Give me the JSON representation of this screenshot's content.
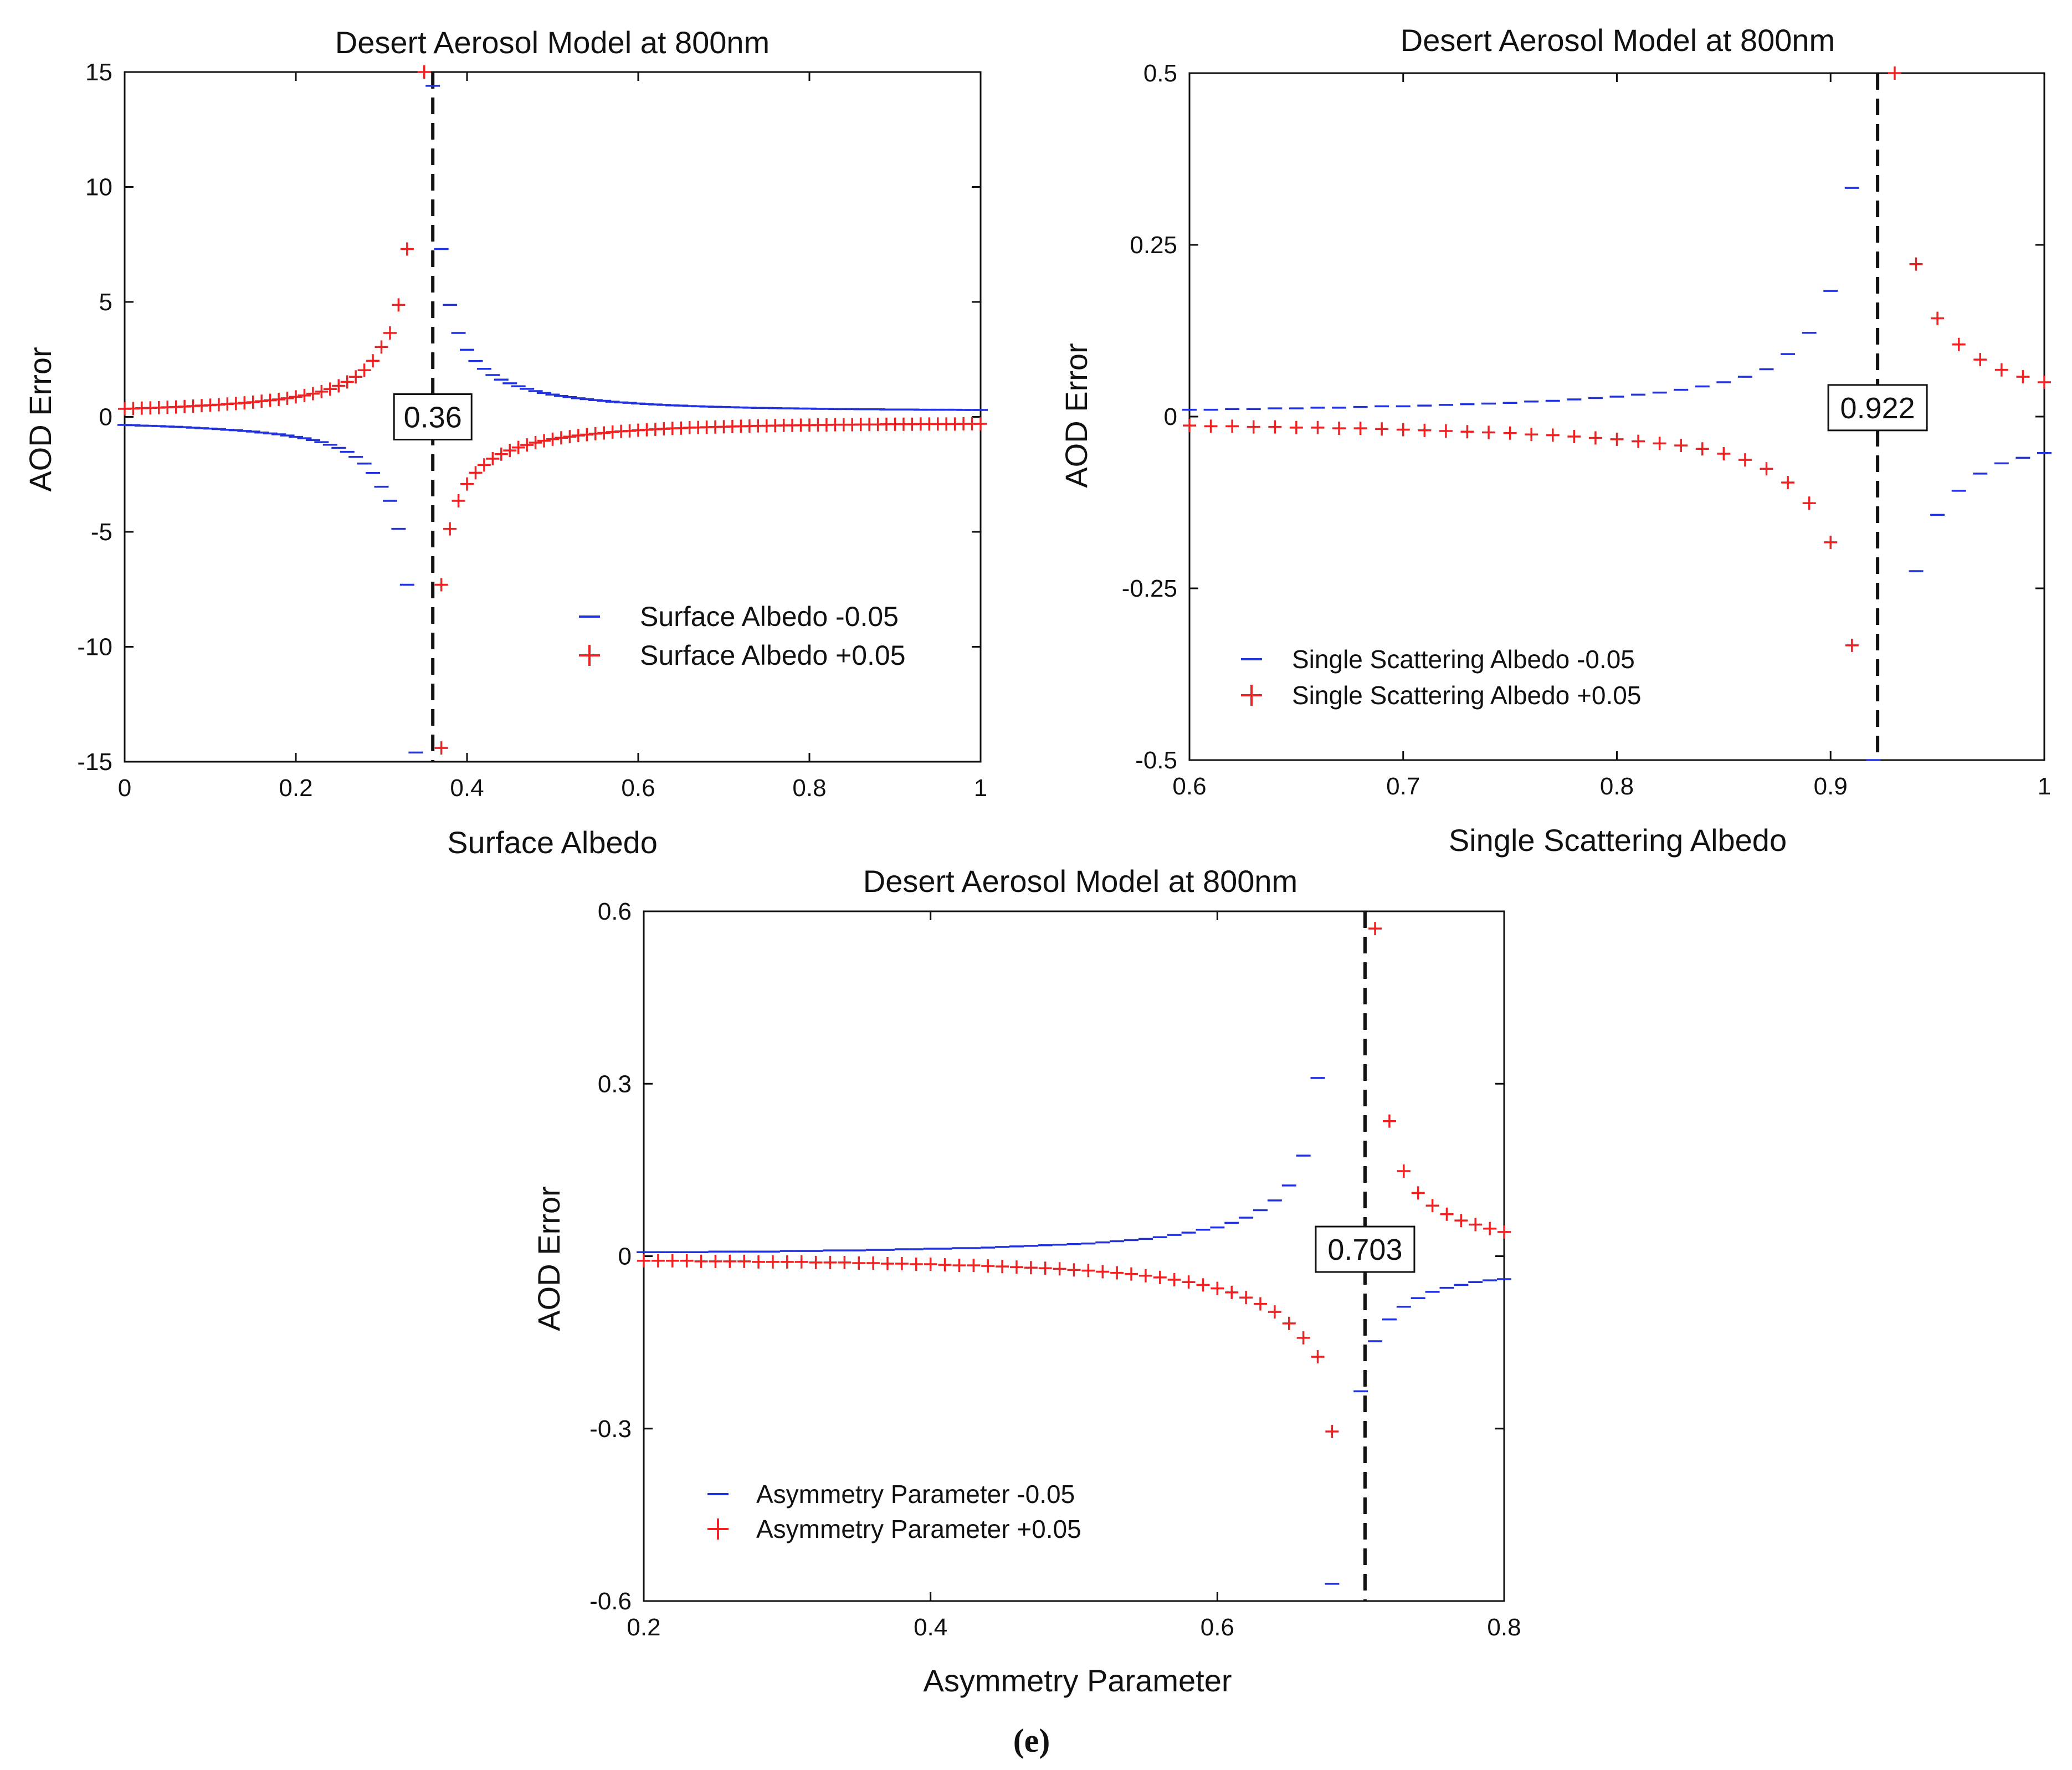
{
  "figure_label": "(e)",
  "colors": {
    "minus": "#2233dd",
    "plus": "#ee2222",
    "axis": "#111111",
    "guide": "#111111"
  },
  "chart_data": [
    {
      "type": "scatter",
      "title": "Desert Aerosol Model at 800nm",
      "xlabel": "Surface Albedo",
      "ylabel": "AOD Error",
      "xlim": [
        0,
        1
      ],
      "ylim": [
        -15,
        15
      ],
      "xticks": [
        0,
        0.2,
        0.4,
        0.6,
        0.8,
        1
      ],
      "xtick_labels": [
        "0",
        "0.2",
        "0.4",
        "0.6",
        "0.8",
        "1"
      ],
      "yticks": [
        15,
        10,
        5,
        0,
        -5,
        -10,
        -15
      ],
      "ytick_labels": [
        "15",
        "10",
        "5",
        "0",
        "-5",
        "-10",
        "-15"
      ],
      "critical_value": 0.36,
      "critical_label": "0.36",
      "critical_label_y": 0,
      "legend_position": "lower-right",
      "series": [
        {
          "name": "Surface Albedo -0.05",
          "marker": "dash",
          "color": "#2233dd",
          "x": [
            0,
            0.01,
            0.02,
            0.03,
            0.04,
            0.05,
            0.06,
            0.07,
            0.08,
            0.09,
            0.1,
            0.11,
            0.12,
            0.13,
            0.14,
            0.15,
            0.16,
            0.17,
            0.18,
            0.19,
            0.2,
            0.21,
            0.22,
            0.23,
            0.24,
            0.25,
            0.26,
            0.27,
            0.28,
            0.29,
            0.3,
            0.31,
            0.32,
            0.33,
            0.34,
            0.35,
            0.36,
            0.37,
            0.38,
            0.39,
            0.4,
            0.41,
            0.42,
            0.43,
            0.44,
            0.45,
            0.46,
            0.47,
            0.48,
            0.49,
            0.5,
            0.51,
            0.52,
            0.53,
            0.54,
            0.55,
            0.56,
            0.57,
            0.58,
            0.59,
            0.6,
            0.61,
            0.62,
            0.63,
            0.64,
            0.65,
            0.66,
            0.67,
            0.68,
            0.69,
            0.7,
            0.71,
            0.72,
            0.73,
            0.74,
            0.75,
            0.76,
            0.77,
            0.78,
            0.79,
            0.8,
            0.81,
            0.82,
            0.83,
            0.84,
            0.85,
            0.86,
            0.87,
            0.88,
            0.89,
            0.9,
            0.91,
            0.92,
            0.93,
            0.94,
            0.95,
            0.96,
            0.97,
            0.98,
            0.99,
            1.0
          ],
          "y": [
            -0.35,
            -0.36,
            -0.38,
            -0.39,
            -0.4,
            -0.42,
            -0.43,
            -0.45,
            -0.47,
            -0.49,
            -0.51,
            -0.53,
            -0.56,
            -0.58,
            -0.61,
            -0.64,
            -0.68,
            -0.72,
            -0.76,
            -0.81,
            -0.87,
            -0.93,
            -1.01,
            -1.1,
            -1.21,
            -1.35,
            -1.52,
            -1.74,
            -2.03,
            -2.44,
            -3.04,
            -3.65,
            -4.87,
            -7.3,
            -14.6,
            null,
            14.4,
            7.3,
            4.87,
            3.65,
            2.92,
            2.43,
            2.09,
            1.82,
            1.62,
            1.46,
            1.33,
            1.22,
            1.12,
            1.04,
            0.97,
            0.91,
            0.86,
            0.81,
            0.77,
            0.73,
            0.7,
            0.66,
            0.63,
            0.61,
            0.58,
            0.56,
            0.54,
            0.52,
            0.5,
            0.49,
            0.47,
            0.46,
            0.45,
            0.44,
            0.43,
            0.42,
            0.41,
            0.4,
            0.39,
            0.39,
            0.38,
            0.37,
            0.37,
            0.36,
            0.36,
            0.35,
            0.35,
            0.34,
            0.34,
            0.34,
            0.33,
            0.33,
            0.33,
            0.32,
            0.32,
            0.32,
            0.32,
            0.31,
            0.31,
            0.31,
            0.31,
            0.31,
            0.3,
            0.3,
            0.3
          ]
        },
        {
          "name": "Surface Albedo +0.05",
          "marker": "plus",
          "color": "#ee2222",
          "x": [
            0,
            0.01,
            0.02,
            0.03,
            0.04,
            0.05,
            0.06,
            0.07,
            0.08,
            0.09,
            0.1,
            0.11,
            0.12,
            0.13,
            0.14,
            0.15,
            0.16,
            0.17,
            0.18,
            0.19,
            0.2,
            0.21,
            0.22,
            0.23,
            0.24,
            0.25,
            0.26,
            0.27,
            0.28,
            0.29,
            0.3,
            0.31,
            0.32,
            0.33,
            0.34,
            0.35,
            0.36,
            0.37,
            0.38,
            0.39,
            0.4,
            0.41,
            0.42,
            0.43,
            0.44,
            0.45,
            0.46,
            0.47,
            0.48,
            0.49,
            0.5,
            0.51,
            0.52,
            0.53,
            0.54,
            0.55,
            0.56,
            0.57,
            0.58,
            0.59,
            0.6,
            0.61,
            0.62,
            0.63,
            0.64,
            0.65,
            0.66,
            0.67,
            0.68,
            0.69,
            0.7,
            0.71,
            0.72,
            0.73,
            0.74,
            0.75,
            0.76,
            0.77,
            0.78,
            0.79,
            0.8,
            0.81,
            0.82,
            0.83,
            0.84,
            0.85,
            0.86,
            0.87,
            0.88,
            0.89,
            0.9,
            0.91,
            0.92,
            0.93,
            0.94,
            0.95,
            0.96,
            0.97,
            0.98,
            0.99,
            1.0
          ],
          "y": [
            0.35,
            0.36,
            0.38,
            0.39,
            0.4,
            0.42,
            0.43,
            0.45,
            0.47,
            0.49,
            0.51,
            0.53,
            0.56,
            0.58,
            0.61,
            0.64,
            0.68,
            0.72,
            0.76,
            0.81,
            0.87,
            0.93,
            1.01,
            1.1,
            1.21,
            1.35,
            1.52,
            1.74,
            2.03,
            2.44,
            3.04,
            3.65,
            4.87,
            7.3,
            null,
            15.0,
            null,
            -7.3,
            -4.87,
            -3.65,
            -2.92,
            -2.43,
            -2.09,
            -1.82,
            -1.62,
            -1.46,
            -1.33,
            -1.22,
            -1.12,
            -1.04,
            -0.97,
            -0.91,
            -0.86,
            -0.81,
            -0.77,
            -0.73,
            -0.7,
            -0.66,
            -0.63,
            -0.61,
            -0.58,
            -0.56,
            -0.54,
            -0.52,
            -0.5,
            -0.49,
            -0.47,
            -0.46,
            -0.45,
            -0.44,
            -0.43,
            -0.42,
            -0.41,
            -0.4,
            -0.39,
            -0.39,
            -0.38,
            -0.37,
            -0.37,
            -0.36,
            -0.36,
            -0.35,
            -0.35,
            -0.34,
            -0.34,
            -0.34,
            -0.33,
            -0.33,
            -0.33,
            -0.32,
            -0.32,
            -0.32,
            -0.32,
            -0.31,
            -0.31,
            -0.31,
            -0.31,
            -0.31,
            -0.3,
            -0.3,
            -0.3
          ]
        }
      ],
      "extra_points": [
        {
          "series": 1,
          "x": 0.37,
          "y": -14.4
        }
      ]
    },
    {
      "type": "scatter",
      "title": "Desert Aerosol Model at 800nm",
      "xlabel": "Single Scattering Albedo",
      "ylabel": "AOD Error",
      "xlim": [
        0.6,
        1
      ],
      "ylim": [
        -0.5,
        0.5
      ],
      "xticks": [
        0.6,
        0.7,
        0.8,
        0.9,
        1
      ],
      "xtick_labels": [
        "0.6",
        "0.7",
        "0.8",
        "0.9",
        "1"
      ],
      "yticks": [
        0.5,
        0.25,
        0,
        -0.25,
        -0.5
      ],
      "ytick_labels": [
        "0.5",
        "0.25",
        "0",
        "-0.25",
        "-0.5"
      ],
      "critical_value": 0.922,
      "critical_label": "0.922",
      "critical_label_y": 0.013,
      "legend_position": "lower-left",
      "series": [
        {
          "name": "Single Scattering Albedo -0.05",
          "marker": "dash",
          "color": "#2233dd",
          "x": [
            0.6,
            0.61,
            0.62,
            0.63,
            0.64,
            0.65,
            0.66,
            0.67,
            0.68,
            0.69,
            0.7,
            0.71,
            0.72,
            0.73,
            0.74,
            0.75,
            0.76,
            0.77,
            0.78,
            0.79,
            0.8,
            0.81,
            0.82,
            0.83,
            0.84,
            0.85,
            0.86,
            0.87,
            0.88,
            0.89,
            0.9,
            0.91,
            0.92,
            0.93,
            0.94,
            0.95,
            0.96,
            0.97,
            0.98,
            0.99,
            1.0
          ],
          "y": [
            0.01,
            0.01,
            0.011,
            0.011,
            0.012,
            0.012,
            0.013,
            0.013,
            0.014,
            0.015,
            0.015,
            0.016,
            0.017,
            0.018,
            0.019,
            0.02,
            0.022,
            0.023,
            0.025,
            0.027,
            0.029,
            0.032,
            0.035,
            0.039,
            0.044,
            0.05,
            0.058,
            0.069,
            0.091,
            0.122,
            0.183,
            0.333,
            -0.5,
            null,
            -0.225,
            -0.143,
            -0.108,
            -0.083,
            -0.068,
            -0.06,
            -0.053
          ]
        },
        {
          "name": "Single Scattering Albedo +0.05",
          "marker": "plus",
          "color": "#ee2222",
          "x": [
            0.6,
            0.61,
            0.62,
            0.63,
            0.64,
            0.65,
            0.66,
            0.67,
            0.68,
            0.69,
            0.7,
            0.71,
            0.72,
            0.73,
            0.74,
            0.75,
            0.76,
            0.77,
            0.78,
            0.79,
            0.8,
            0.81,
            0.82,
            0.83,
            0.84,
            0.85,
            0.86,
            0.87,
            0.88,
            0.89,
            0.9,
            0.91,
            0.92,
            0.93,
            0.94,
            0.95,
            0.96,
            0.97,
            0.98,
            0.99,
            1.0
          ],
          "y": [
            -0.013,
            -0.014,
            -0.014,
            -0.015,
            -0.015,
            -0.016,
            -0.016,
            -0.017,
            -0.017,
            -0.018,
            -0.019,
            -0.02,
            -0.021,
            -0.022,
            -0.023,
            -0.024,
            -0.026,
            -0.027,
            -0.029,
            -0.031,
            -0.033,
            -0.036,
            -0.039,
            -0.042,
            -0.047,
            -0.054,
            -0.063,
            -0.076,
            -0.096,
            -0.126,
            -0.183,
            -0.333,
            null,
            0.5,
            0.222,
            0.143,
            0.105,
            0.083,
            0.068,
            0.058,
            0.05
          ]
        }
      ]
    },
    {
      "type": "scatter",
      "title": "Desert Aerosol Model at 800nm",
      "xlabel": "Asymmetry Parameter",
      "ylabel": "AOD Error",
      "xlim": [
        0.2,
        0.8
      ],
      "ylim": [
        -0.6,
        0.6
      ],
      "xticks": [
        0.2,
        0.4,
        0.6,
        0.8
      ],
      "xtick_labels": [
        "0.2",
        "0.4",
        "0.6",
        "0.8"
      ],
      "yticks": [
        0.6,
        0.3,
        0,
        -0.3,
        -0.6
      ],
      "ytick_labels": [
        "0.6",
        "0.3",
        "0",
        "-0.3",
        "-0.6"
      ],
      "critical_value": 0.703,
      "critical_label": "0.703",
      "critical_label_y": 0.012,
      "legend_position": "lower-left",
      "series": [
        {
          "name": "Asymmetry Parameter -0.05",
          "marker": "dash",
          "color": "#2233dd",
          "x": [
            0.2,
            0.21,
            0.22,
            0.23,
            0.24,
            0.25,
            0.26,
            0.27,
            0.28,
            0.29,
            0.3,
            0.31,
            0.32,
            0.33,
            0.34,
            0.35,
            0.36,
            0.37,
            0.38,
            0.39,
            0.4,
            0.41,
            0.42,
            0.43,
            0.44,
            0.45,
            0.46,
            0.47,
            0.48,
            0.49,
            0.5,
            0.51,
            0.52,
            0.53,
            0.54,
            0.55,
            0.56,
            0.57,
            0.58,
            0.59,
            0.6,
            0.61,
            0.62,
            0.63,
            0.64,
            0.65,
            0.66,
            0.67,
            0.68,
            0.69,
            0.7,
            0.71,
            0.72,
            0.73,
            0.74,
            0.75,
            0.76,
            0.77,
            0.78,
            0.79,
            0.8
          ],
          "y": [
            0.007,
            0.007,
            0.007,
            0.007,
            0.007,
            0.008,
            0.008,
            0.008,
            0.008,
            0.008,
            0.009,
            0.009,
            0.009,
            0.01,
            0.01,
            0.01,
            0.011,
            0.011,
            0.012,
            0.012,
            0.013,
            0.013,
            0.014,
            0.014,
            0.015,
            0.016,
            0.017,
            0.018,
            0.019,
            0.02,
            0.021,
            0.022,
            0.024,
            0.026,
            0.028,
            0.03,
            0.033,
            0.037,
            0.041,
            0.046,
            0.05,
            0.058,
            0.067,
            0.08,
            0.097,
            0.123,
            0.175,
            0.31,
            -0.57,
            null,
            -0.235,
            -0.148,
            -0.11,
            -0.088,
            -0.073,
            -0.062,
            -0.055,
            -0.05,
            -0.045,
            -0.042,
            -0.04
          ]
        },
        {
          "name": "Asymmetry Parameter +0.05",
          "marker": "plus",
          "color": "#ee2222",
          "x": [
            0.2,
            0.21,
            0.22,
            0.23,
            0.24,
            0.25,
            0.26,
            0.27,
            0.28,
            0.29,
            0.3,
            0.31,
            0.32,
            0.33,
            0.34,
            0.35,
            0.36,
            0.37,
            0.38,
            0.39,
            0.4,
            0.41,
            0.42,
            0.43,
            0.44,
            0.45,
            0.46,
            0.47,
            0.48,
            0.49,
            0.5,
            0.51,
            0.52,
            0.53,
            0.54,
            0.55,
            0.56,
            0.57,
            0.58,
            0.59,
            0.6,
            0.61,
            0.62,
            0.63,
            0.64,
            0.65,
            0.66,
            0.67,
            0.68,
            0.69,
            0.7,
            0.71,
            0.72,
            0.73,
            0.74,
            0.75,
            0.76,
            0.77,
            0.78,
            0.79,
            0.8
          ],
          "y": [
            -0.008,
            -0.008,
            -0.008,
            -0.008,
            -0.009,
            -0.009,
            -0.009,
            -0.009,
            -0.01,
            -0.01,
            -0.01,
            -0.01,
            -0.011,
            -0.011,
            -0.011,
            -0.012,
            -0.012,
            -0.013,
            -0.013,
            -0.014,
            -0.014,
            -0.015,
            -0.016,
            -0.016,
            -0.017,
            -0.018,
            -0.019,
            -0.02,
            -0.021,
            -0.022,
            -0.024,
            -0.025,
            -0.027,
            -0.029,
            -0.031,
            -0.034,
            -0.037,
            -0.041,
            -0.045,
            -0.05,
            -0.056,
            -0.063,
            -0.072,
            -0.083,
            -0.097,
            -0.117,
            -0.142,
            -0.175,
            -0.305,
            null,
            null,
            0.57,
            0.235,
            0.148,
            0.11,
            0.088,
            0.073,
            0.062,
            0.055,
            0.048,
            0.042
          ]
        }
      ]
    }
  ]
}
